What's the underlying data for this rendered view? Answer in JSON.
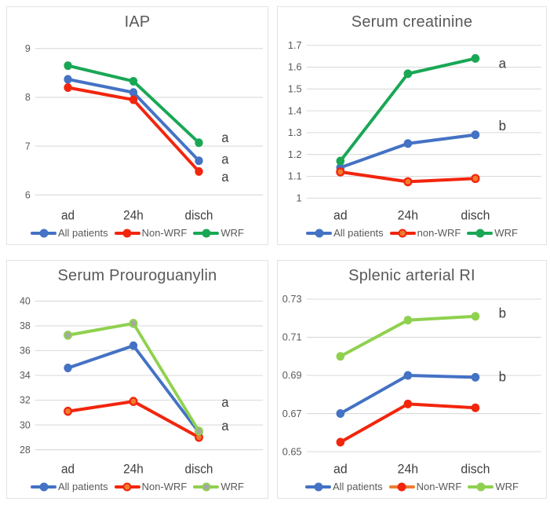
{
  "figure": {
    "description_colors": {
      "grid": "#d9d9d9",
      "tick_label": "#595959",
      "category_label": "#3f3f3f",
      "annotation": "#3d3d3d",
      "panel_border": "#e2e2e2"
    }
  },
  "chart_data": [
    {
      "id": "iap",
      "type": "line",
      "title": "IAP",
      "categories": [
        "ad",
        "24h",
        "disch"
      ],
      "y_ticks": [
        "9",
        "8",
        "7",
        "6"
      ],
      "ylim": [
        5.8,
        9.2
      ],
      "grid": true,
      "legend_position": "bottom",
      "series": [
        {
          "name": "All patients",
          "color": "#4472c4",
          "marker": "#4472c4",
          "values": [
            8.37,
            8.1,
            6.7
          ]
        },
        {
          "name": "Non-WRF",
          "color": "#f2250d",
          "marker": "#f2250d",
          "values": [
            8.2,
            7.95,
            6.48
          ]
        },
        {
          "name": "WRF",
          "color": "#19a755",
          "marker": "#19a755",
          "values": [
            8.65,
            8.33,
            7.07
          ]
        }
      ],
      "annotations": [
        {
          "text": "a",
          "y": 7.17
        },
        {
          "text": "a",
          "y": 6.72
        },
        {
          "text": "a",
          "y": 6.36
        }
      ]
    },
    {
      "id": "serum-creatinine",
      "type": "line",
      "title": "Serum creatinine",
      "categories": [
        "ad",
        "24h",
        "disch"
      ],
      "y_ticks": [
        "1.7",
        "1.6",
        "1.5",
        "1.4",
        "1.3",
        "1.2",
        "1.1",
        "1"
      ],
      "ylim": [
        0.97,
        1.73
      ],
      "grid": true,
      "legend_position": "bottom",
      "series": [
        {
          "name": "All patients",
          "color": "#4472c4",
          "marker": "#4472c4",
          "values": [
            1.14,
            1.25,
            1.29
          ]
        },
        {
          "name": "non-WRF",
          "color": "#f2250d",
          "marker": "#ed7d31",
          "values": [
            1.12,
            1.075,
            1.09
          ]
        },
        {
          "name": "WRF",
          "color": "#19a755",
          "marker": "#19a755",
          "values": [
            1.17,
            1.57,
            1.64
          ]
        }
      ],
      "annotations": [
        {
          "text": "a",
          "y": 1.615
        },
        {
          "text": "b",
          "y": 1.33
        }
      ]
    },
    {
      "id": "serum-prouroguanylin",
      "type": "line",
      "title": "Serum Prouroguanylin",
      "categories": [
        "ad",
        "24h",
        "disch"
      ],
      "y_ticks": [
        "40",
        "38",
        "36",
        "34",
        "32",
        "30",
        "28"
      ],
      "ylim": [
        27.3,
        40.7
      ],
      "grid": true,
      "legend_position": "bottom",
      "series": [
        {
          "name": "All patients",
          "color": "#4472c4",
          "marker": "#4472c4",
          "values": [
            34.6,
            36.4,
            29.4
          ]
        },
        {
          "name": "Non-WRF",
          "color": "#f2250d",
          "marker": "#ed7d31",
          "values": [
            31.1,
            31.9,
            29.0
          ]
        },
        {
          "name": "WRF",
          "color": "#8fd14f",
          "marker": "#a6a6a6",
          "values": [
            37.25,
            38.2,
            29.5
          ]
        }
      ],
      "annotations": [
        {
          "text": "a",
          "y": 31.8
        },
        {
          "text": "a",
          "y": 29.9
        }
      ]
    },
    {
      "id": "splenic-arterial-ri",
      "type": "line",
      "title": "Splenic arterial RI",
      "categories": [
        "ad",
        "24h",
        "disch"
      ],
      "y_ticks": [
        "0.73",
        "0.71",
        "0.69",
        "0.67",
        "0.65"
      ],
      "ylim": [
        0.6465,
        0.7335
      ],
      "grid": true,
      "legend_position": "bottom",
      "series": [
        {
          "name": "All patients",
          "color": "#4472c4",
          "marker": "#4472c4",
          "values": [
            0.67,
            0.69,
            0.689
          ]
        },
        {
          "name": "Non-WRF",
          "color": "#f2250d",
          "marker": "#f2250d",
          "legend_line": "#ed7d31",
          "values": [
            0.655,
            0.675,
            0.673
          ]
        },
        {
          "name": "WRF",
          "color": "#8fd14f",
          "marker": "#8fd14f",
          "values": [
            0.7,
            0.719,
            0.721
          ]
        }
      ],
      "annotations": [
        {
          "text": "b",
          "y": 0.7225
        },
        {
          "text": "b",
          "y": 0.689
        }
      ]
    }
  ]
}
